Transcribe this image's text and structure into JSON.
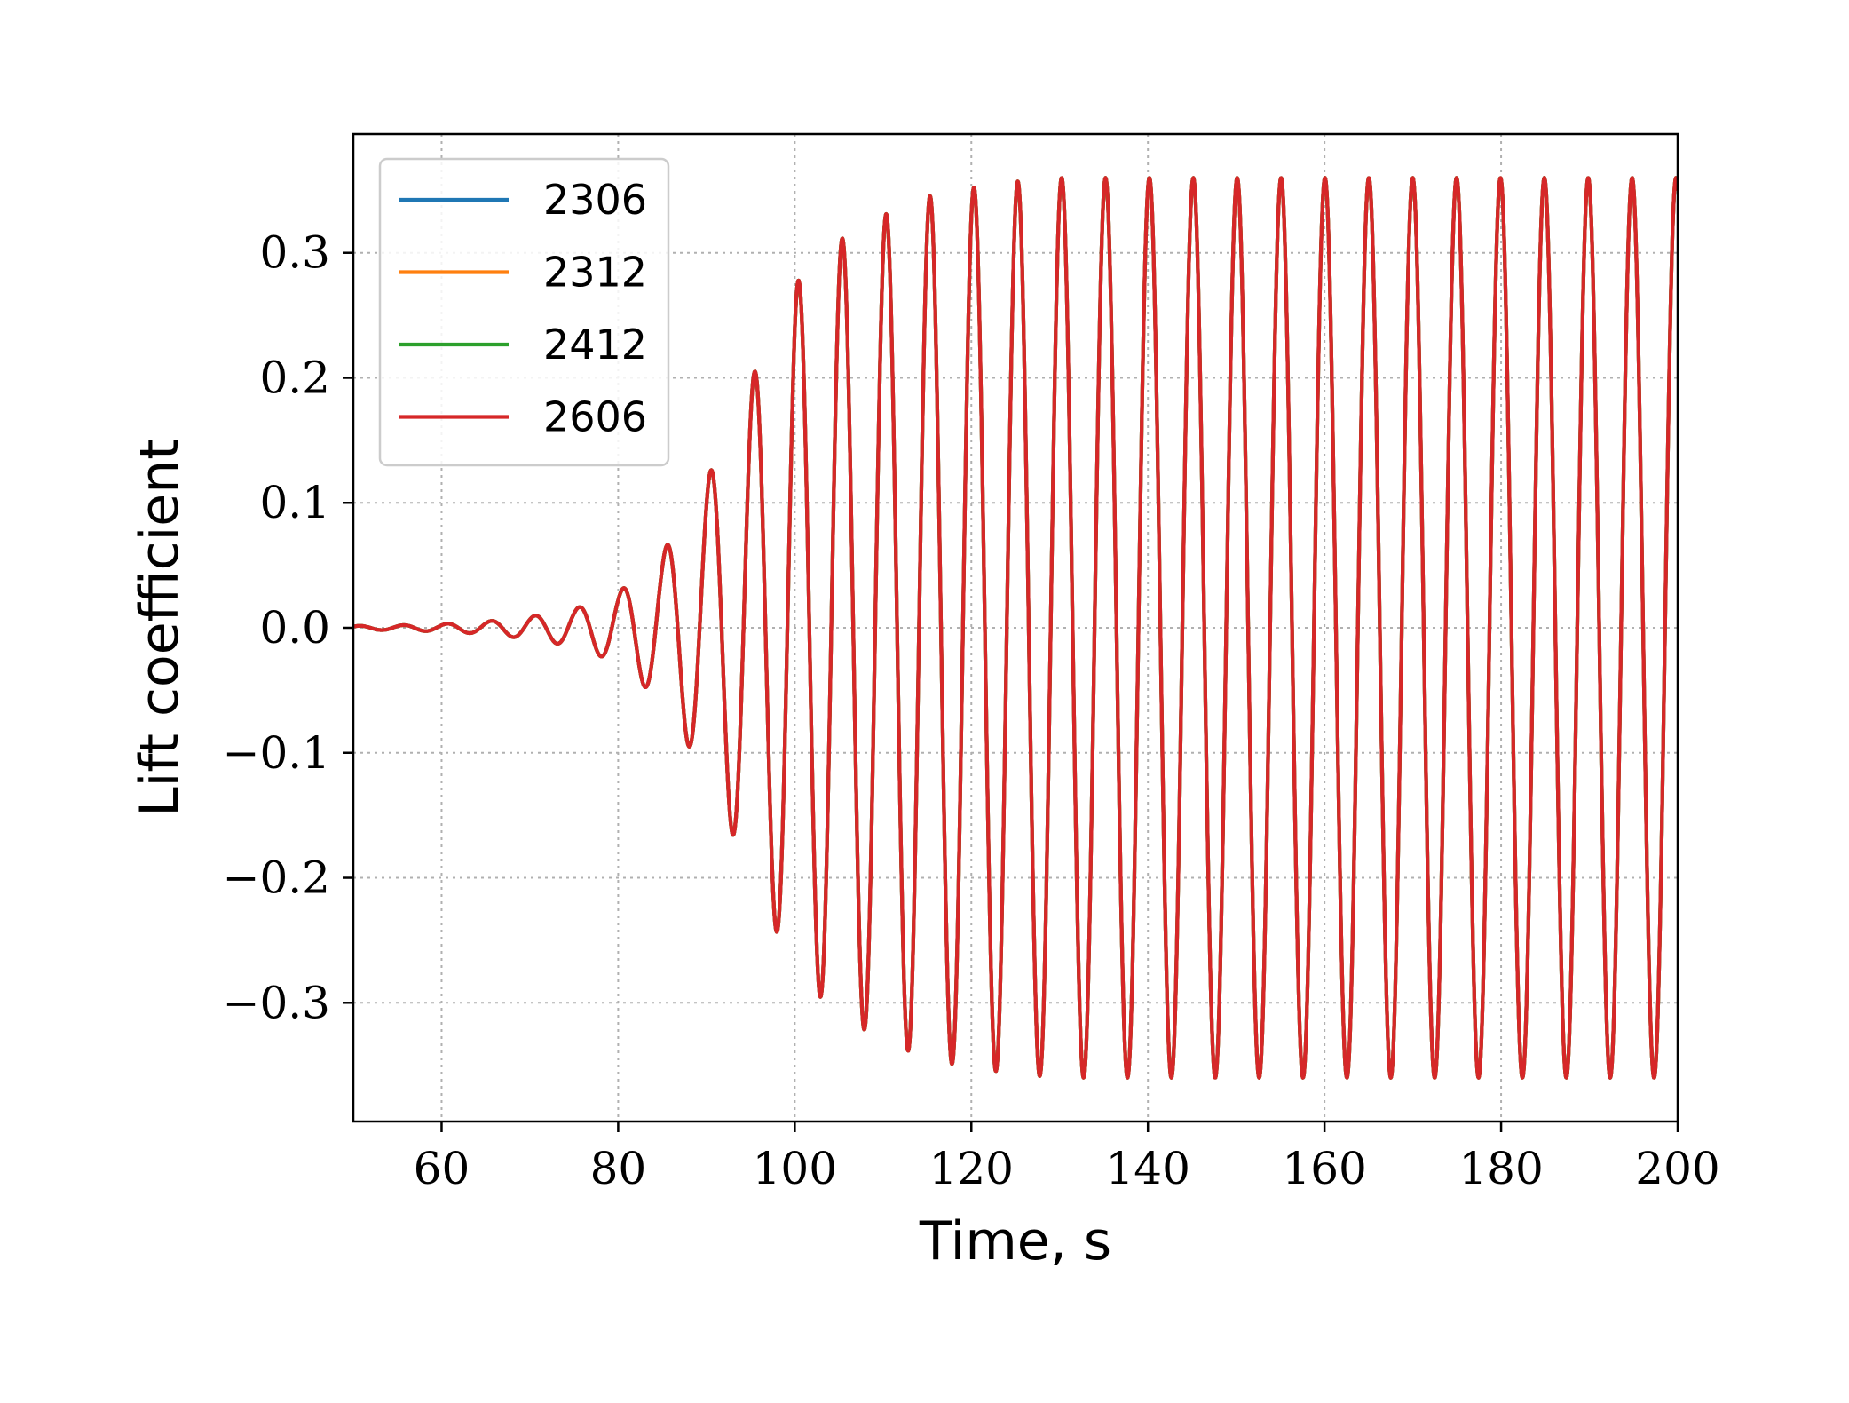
{
  "chart_data": {
    "type": "line",
    "title": "",
    "xlabel": "Time, s",
    "ylabel": "Lift coefficient",
    "xlim": [
      50,
      200
    ],
    "ylim": [
      -0.395,
      0.395
    ],
    "xticks": [
      60,
      80,
      100,
      120,
      140,
      160,
      180,
      200
    ],
    "xtick_labels": [
      "60",
      "80",
      "100",
      "120",
      "140",
      "160",
      "180",
      "200"
    ],
    "yticks": [
      -0.3,
      -0.2,
      -0.1,
      0.0,
      0.1,
      0.2,
      0.3
    ],
    "ytick_labels": [
      "−0.3",
      "−0.2",
      "−0.1",
      "0.0",
      "0.1",
      "0.2",
      "0.3"
    ],
    "grid": true,
    "legend_position": "upper-left",
    "series": [
      {
        "name": "2306",
        "color": "#1f77b4"
      },
      {
        "name": "2312",
        "color": "#ff7f0e"
      },
      {
        "name": "2412",
        "color": "#2ca02c"
      },
      {
        "name": "2606",
        "color": "#d62728"
      }
    ],
    "signal_model": {
      "period_s": 4.97,
      "phase_peak_t": 135.2,
      "amplitude_envelope": {
        "t": [
          50,
          55,
          60,
          65,
          70,
          75,
          80,
          85,
          90,
          95,
          100,
          105,
          110,
          115,
          120,
          125,
          130,
          200
        ],
        "amp": [
          0.0015,
          0.002,
          0.003,
          0.005,
          0.009,
          0.015,
          0.028,
          0.06,
          0.118,
          0.198,
          0.275,
          0.31,
          0.33,
          0.345,
          0.352,
          0.357,
          0.36,
          0.36
        ]
      },
      "note_series_overlap": "All four series coincide; the 2606 curve is drawn on top."
    }
  }
}
